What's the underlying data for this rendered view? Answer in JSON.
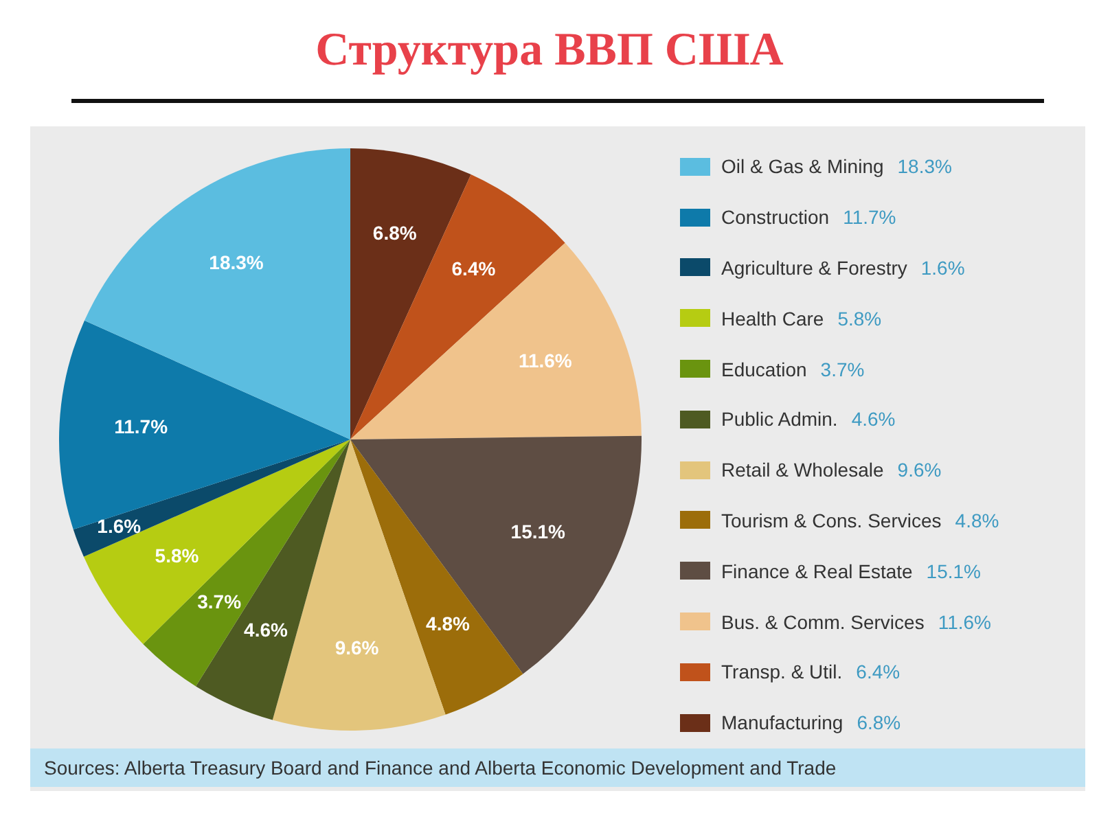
{
  "chart_data": {
    "type": "pie",
    "title": "Структура ВВП США",
    "categories": [
      "Oil & Gas & Mining",
      "Construction",
      "Agriculture & Forestry",
      "Health Care",
      "Education",
      "Public Admin.",
      "Retail & Wholesale",
      "Tourism & Cons. Services",
      "Finance & Real Estate",
      "Bus. & Comm. Services",
      "Transp. & Util.",
      "Manufacturing"
    ],
    "values": [
      18.3,
      11.7,
      1.6,
      5.8,
      3.7,
      4.6,
      9.6,
      4.8,
      15.1,
      11.6,
      6.4,
      6.8
    ],
    "value_labels": [
      "18.3%",
      "11.7%",
      "1.6%",
      "5.8%",
      "3.7%",
      "4.6%",
      "9.6%",
      "4.8%",
      "15.1%",
      "11.6%",
      "6.4%",
      "6.8%"
    ],
    "colors": [
      "#5bbde0",
      "#0e7aaa",
      "#0b4a6a",
      "#b6cc12",
      "#6a940f",
      "#4e5a22",
      "#e3c57c",
      "#9c6d0a",
      "#5e4d43",
      "#f0c38c",
      "#c0521b",
      "#6b2f18"
    ],
    "legend": "right",
    "annotations": [
      "Sources: Alberta Treasury Board and Finance and Alberta Economic Development and Trade"
    ]
  }
}
